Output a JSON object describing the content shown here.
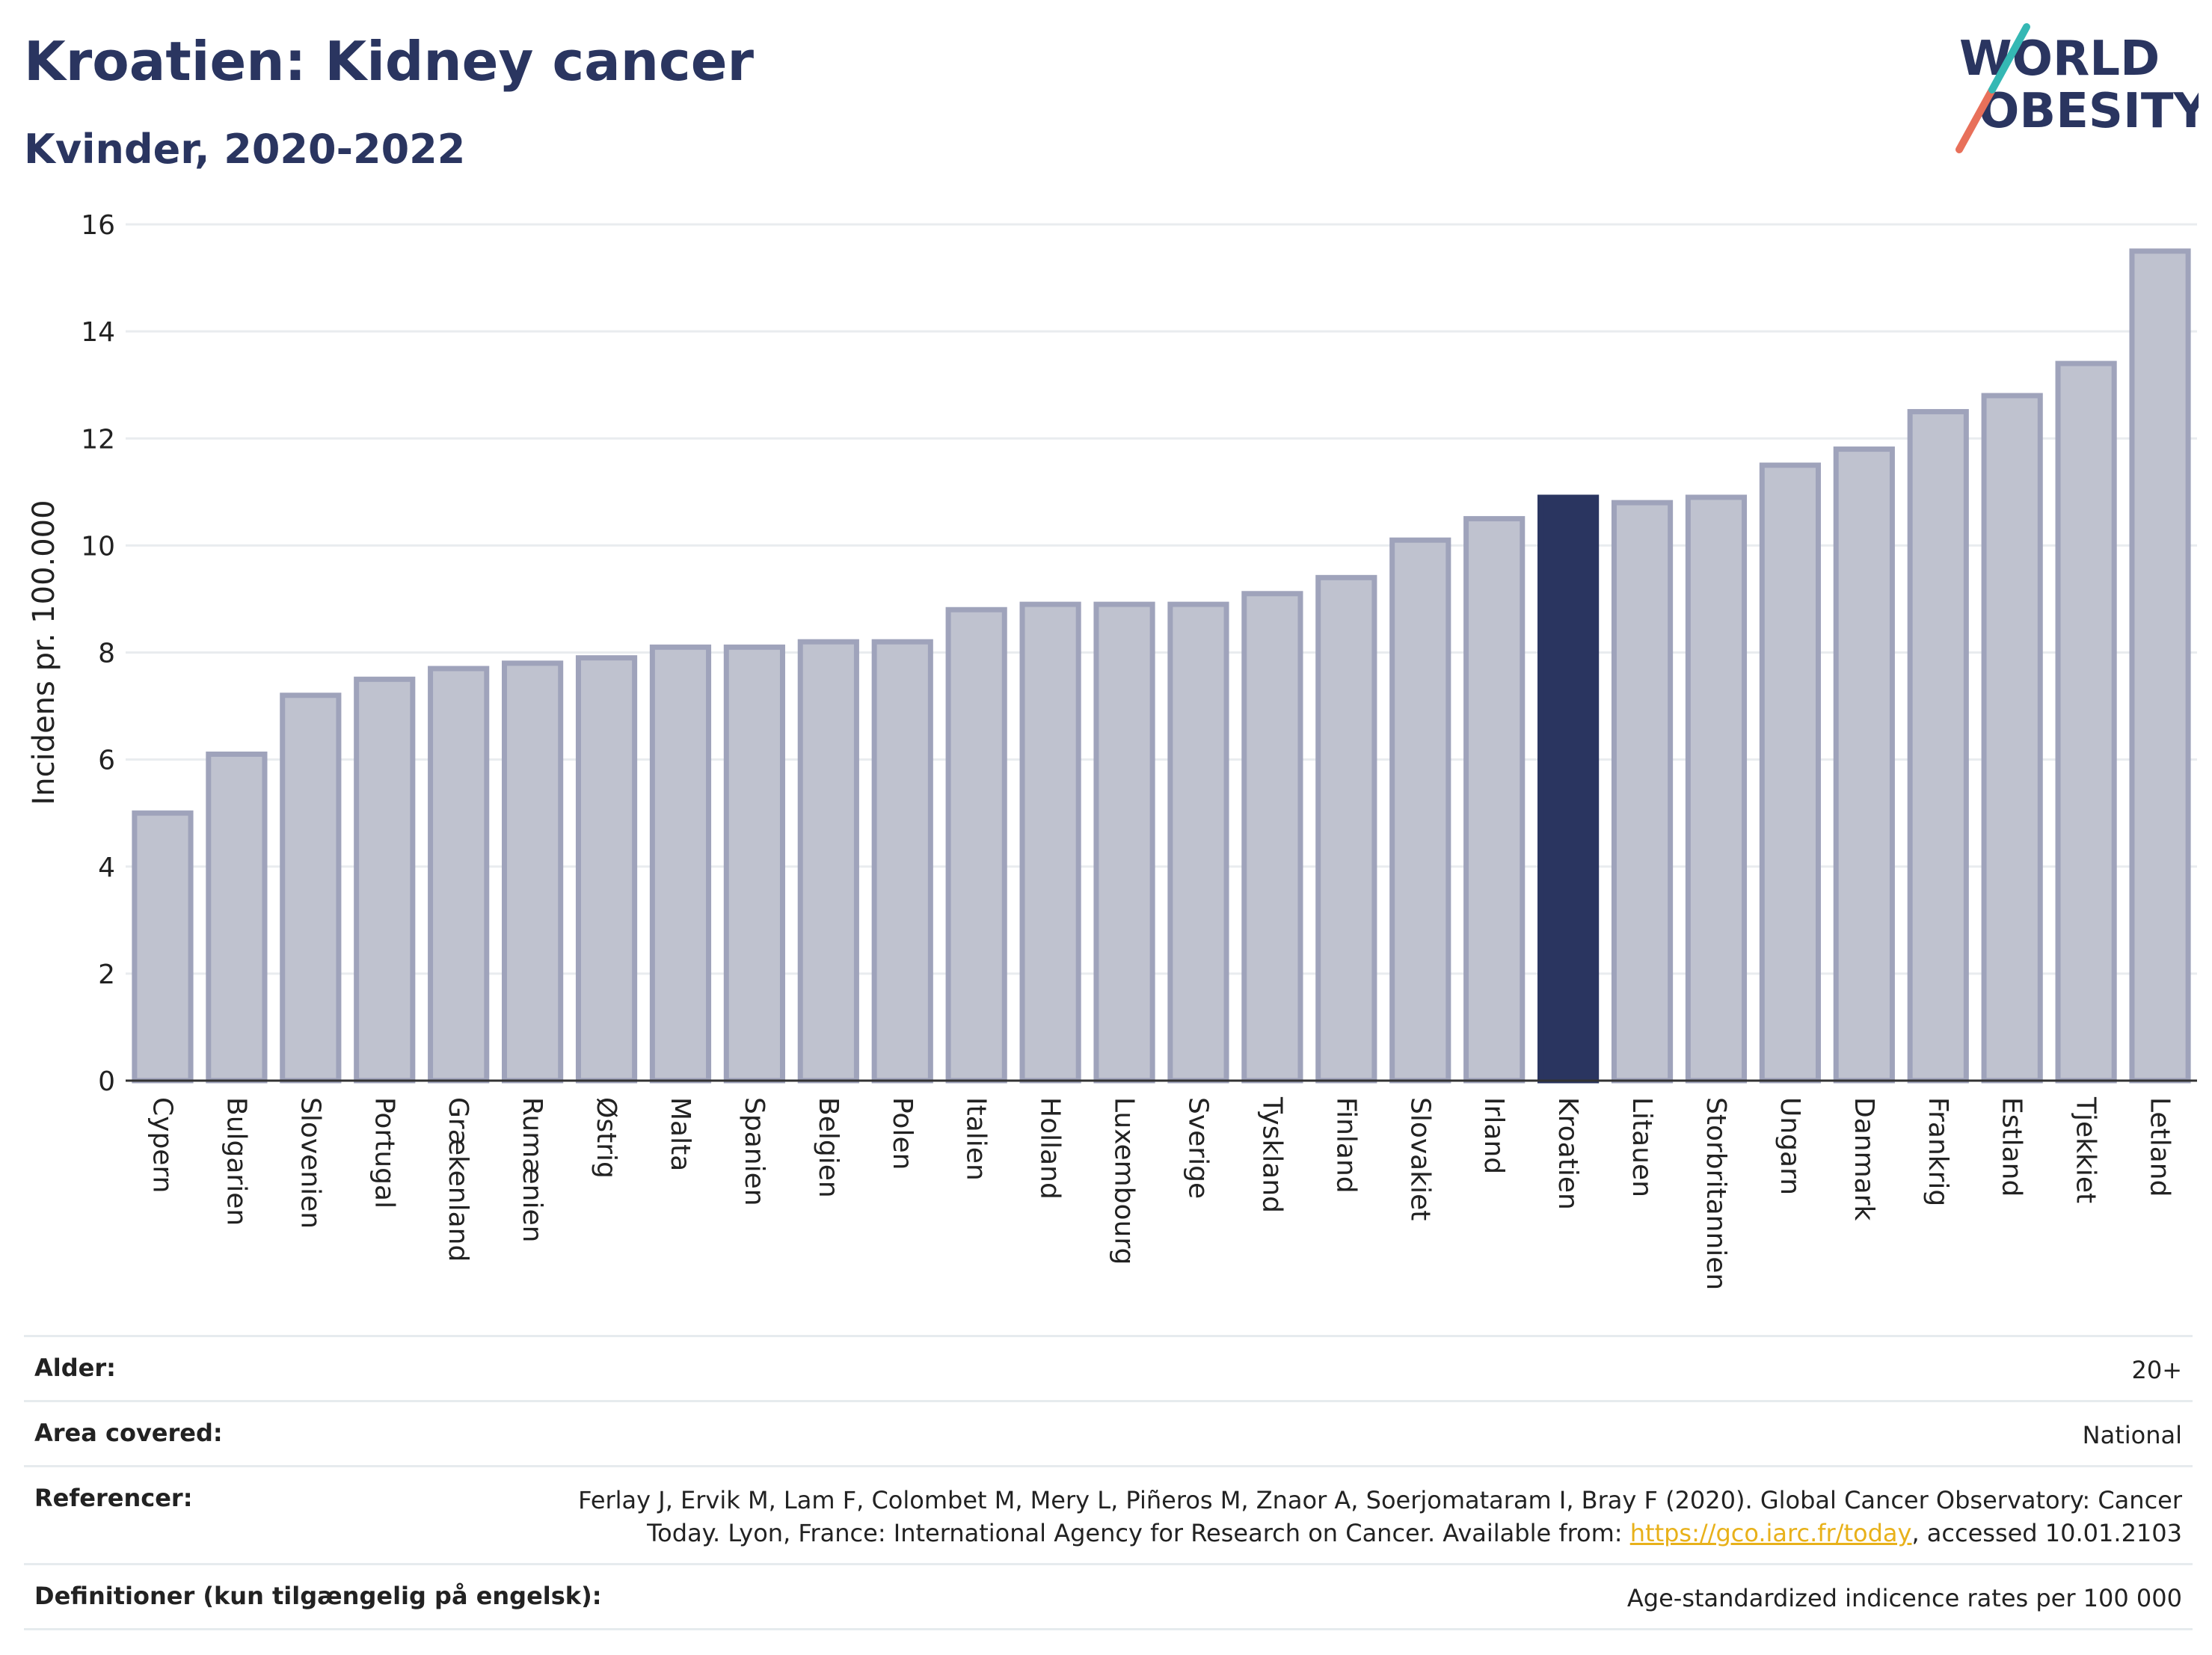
{
  "title": "Kroatien: Kidney cancer",
  "subtitle": "Kvinder, 2020-2022",
  "logo": {
    "line1": "WORLD",
    "line2": "OBESITY"
  },
  "colors": {
    "bar_fill": "#bfc2cf",
    "bar_stroke": "#9fa3bb",
    "highlight": "#2a3560",
    "grid": "#e9ecef",
    "title": "#2a3560",
    "link": "#e8b11a"
  },
  "chart_data": {
    "type": "bar",
    "ylabel": "Incidens pr. 100.000",
    "xlabel": "",
    "ylim": [
      0,
      16
    ],
    "yticks": [
      0,
      2,
      4,
      6,
      8,
      10,
      12,
      14,
      16
    ],
    "grid": true,
    "highlight": "Kroatien",
    "categories": [
      "Cypern",
      "Bulgarien",
      "Slovenien",
      "Portugal",
      "Grækenland",
      "Rumænien",
      "Østrig",
      "Malta",
      "Spanien",
      "Belgien",
      "Polen",
      "Italien",
      "Holland",
      "Luxembourg",
      "Sverige",
      "Tyskland",
      "Finland",
      "Slovakiet",
      "Irland",
      "Kroatien",
      "Litauen",
      "Storbritannien",
      "Ungarn",
      "Danmark",
      "Frankrig",
      "Estland",
      "Tjekkiet",
      "Letland"
    ],
    "values": [
      5.0,
      6.1,
      7.2,
      7.5,
      7.7,
      7.8,
      7.9,
      8.1,
      8.1,
      8.2,
      8.2,
      8.8,
      8.9,
      8.9,
      8.9,
      9.1,
      9.4,
      10.1,
      10.5,
      10.9,
      10.8,
      10.9,
      11.5,
      11.8,
      12.5,
      12.8,
      13.4,
      15.5
    ]
  },
  "info": {
    "age_label": "Alder:",
    "age_value": "20+",
    "area_label": "Area covered:",
    "area_value": "National",
    "ref_label": "Referencer:",
    "ref_text_1": "Ferlay J, Ervik M, Lam F, Colombet M, Mery L, Piñeros M, Znaor A, Soerjomataram I, Bray F (2020). Global Cancer Observatory: Cancer Today. Lyon, France: International Agency for Research on Cancer. Available from: ",
    "ref_link": "https://gco.iarc.fr/today",
    "ref_text_2": ", accessed 10.01.2103",
    "def_label": "Definitioner (kun tilgængelig på engelsk):",
    "def_value": "Age-standardized indicence rates per 100 000"
  }
}
